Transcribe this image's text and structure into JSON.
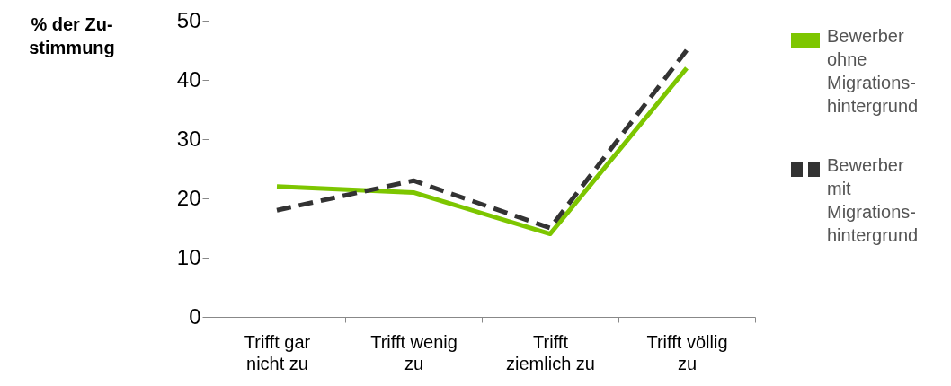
{
  "chart_data": {
    "type": "line",
    "ylabel": "% der Zu-stimmung",
    "categories": [
      "Trifft gar nicht zu",
      "Trifft wenig zu",
      "Trifft ziemlich zu",
      "Trifft völlig zu"
    ],
    "series": [
      {
        "name": "Bewerber ohne Migrations-hintergrund",
        "color": "#7dc600",
        "values": [
          22,
          21,
          14,
          42
        ],
        "line_style": "solid"
      },
      {
        "name": "Bewerber mit Migrations-hintergrund",
        "color": "#333333",
        "values": [
          18,
          23,
          15,
          45
        ],
        "line_style": "dashed"
      }
    ],
    "ylim": [
      0,
      50
    ],
    "yticks": [
      0,
      10,
      20,
      30,
      40,
      50
    ],
    "grid": false,
    "legend": "right",
    "marker": "none"
  }
}
